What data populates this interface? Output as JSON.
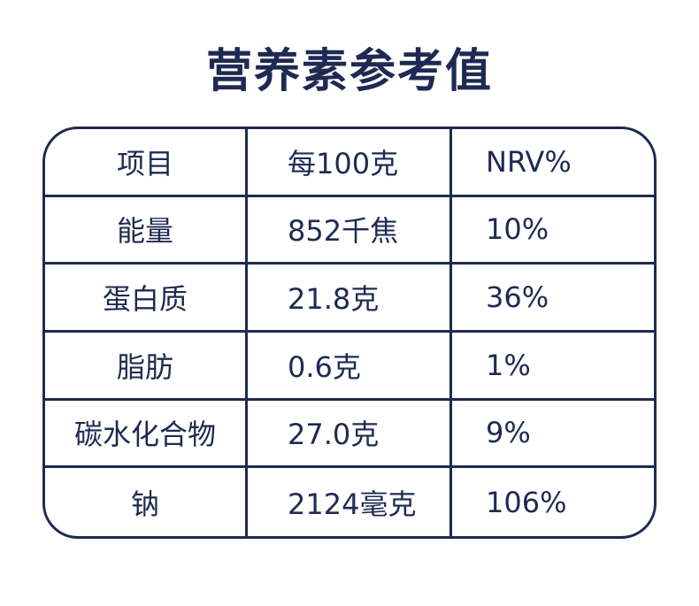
{
  "title": "营养素参考值",
  "table": {
    "header": [
      "项目",
      "每100克",
      "NRV%"
    ],
    "rows": [
      [
        "能量",
        "852千焦",
        "10%"
      ],
      [
        "蛋白质",
        "21.8克",
        "36%"
      ],
      [
        "脂肪",
        "0.6克",
        "1%"
      ],
      [
        "碳水化合物",
        "27.0克",
        "9%"
      ],
      [
        "钠",
        "2124毫克",
        "106%"
      ]
    ]
  }
}
